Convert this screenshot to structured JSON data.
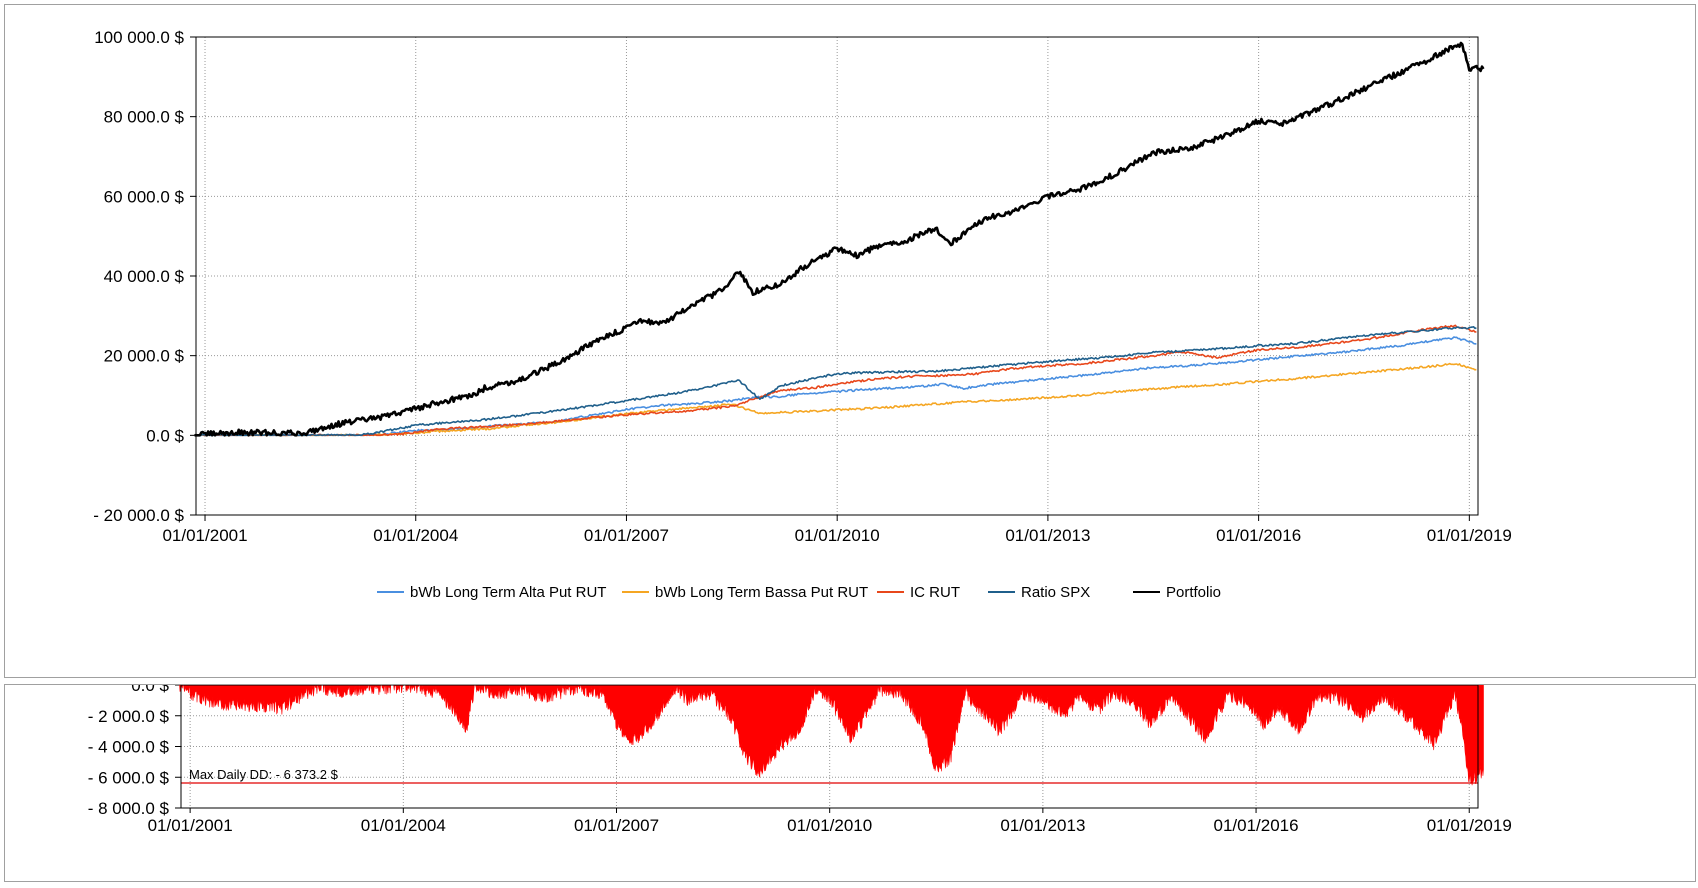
{
  "chart_data": [
    {
      "type": "line",
      "title": "",
      "xlabel": "",
      "ylabel": "",
      "xlim": [
        "2000-11-15",
        "2019-02-15"
      ],
      "ylim": [
        -20000,
        100000
      ],
      "grid": true,
      "legend_placement": "bottom",
      "x_tick_labels": [
        "01/01/2001",
        "01/01/2004",
        "01/01/2007",
        "01/01/2010",
        "01/01/2013",
        "01/01/2016",
        "01/01/2019"
      ],
      "x_tick_years": [
        2001,
        2004,
        2007,
        2010,
        2013,
        2016,
        2019
      ],
      "y_ticks": [
        -20000,
        0,
        20000,
        40000,
        60000,
        80000,
        100000
      ],
      "y_tick_labels": [
        "- 20 000.0 $",
        "0.0 $",
        "20 000.0 $",
        "40 000.0 $",
        "60 000.0 $",
        "80 000.0 $",
        "100 000.0 $"
      ],
      "series": [
        {
          "name": "bWb Long Term Alta Put RUT",
          "color": "#4a8fe0",
          "x": [
            2000.9,
            2003.3,
            2003.6,
            2004.0,
            2004.5,
            2005.0,
            2005.5,
            2006.0,
            2006.5,
            2007.0,
            2007.5,
            2008.0,
            2008.5,
            2008.8,
            2009.2,
            2009.6,
            2010.0,
            2010.5,
            2011.0,
            2011.5,
            2011.8,
            2012.2,
            2012.6,
            2013.0,
            2013.5,
            2014.0,
            2014.5,
            2015.0,
            2015.5,
            2016.0,
            2016.5,
            2017.0,
            2017.5,
            2018.0,
            2018.5,
            2018.8,
            2019.1
          ],
          "y": [
            0,
            0,
            400,
            1200,
            1500,
            2200,
            2800,
            3500,
            5000,
            6500,
            7500,
            8000,
            8700,
            9500,
            9800,
            10500,
            11000,
            11600,
            12000,
            12800,
            11800,
            12800,
            13500,
            14200,
            15000,
            16000,
            17000,
            17500,
            18200,
            19000,
            19800,
            20500,
            21500,
            22500,
            23800,
            24500,
            23000
          ]
        },
        {
          "name": "bWb Long Term Bassa Put RUT",
          "color": "#f5a623",
          "x": [
            2000.9,
            2003.3,
            2003.8,
            2004.3,
            2005.0,
            2005.5,
            2006.0,
            2006.5,
            2007.0,
            2007.5,
            2008.0,
            2008.5,
            2008.9,
            2009.2,
            2009.6,
            2010.0,
            2010.5,
            2011.0,
            2011.5,
            2011.9,
            2012.3,
            2013.0,
            2013.5,
            2014.0,
            2014.5,
            2015.0,
            2015.5,
            2016.0,
            2016.5,
            2017.0,
            2017.5,
            2018.0,
            2018.5,
            2018.8,
            2019.1
          ],
          "y": [
            0,
            0,
            300,
            1000,
            1600,
            2500,
            3300,
            4300,
            5400,
            6300,
            7000,
            7800,
            5500,
            5800,
            6000,
            6400,
            6800,
            7400,
            8000,
            8500,
            8800,
            9500,
            10100,
            11000,
            11600,
            12300,
            12800,
            13600,
            14200,
            15000,
            15800,
            16600,
            17400,
            18000,
            16500
          ]
        },
        {
          "name": "IC RUT",
          "color": "#e8471b",
          "x": [
            2000.9,
            2003.3,
            2003.8,
            2004.3,
            2005.0,
            2005.5,
            2006.0,
            2006.5,
            2007.0,
            2007.5,
            2008.0,
            2008.5,
            2008.8,
            2009.2,
            2009.7,
            2010.0,
            2010.5,
            2011.0,
            2011.5,
            2012.0,
            2012.5,
            2013.0,
            2013.5,
            2014.0,
            2014.5,
            2014.9,
            2015.4,
            2016.0,
            2016.5,
            2017.0,
            2017.5,
            2018.0,
            2018.5,
            2018.8,
            2019.1
          ],
          "y": [
            0,
            0,
            300,
            1500,
            2200,
            2800,
            3500,
            4400,
            5200,
            5700,
            6300,
            7300,
            9000,
            11300,
            12000,
            13000,
            14000,
            14800,
            15000,
            15500,
            16800,
            17500,
            18000,
            19000,
            20000,
            21000,
            19500,
            21500,
            22000,
            23000,
            24000,
            25500,
            27000,
            27500,
            26000
          ]
        },
        {
          "name": "Ratio SPX",
          "color": "#1f5f8b",
          "x": [
            2000.9,
            2003.2,
            2003.6,
            2004.0,
            2004.5,
            2005.0,
            2005.5,
            2006.0,
            2006.5,
            2007.0,
            2007.5,
            2008.0,
            2008.6,
            2008.9,
            2009.2,
            2009.6,
            2010.0,
            2010.5,
            2011.0,
            2011.5,
            2012.0,
            2012.5,
            2013.0,
            2013.5,
            2014.0,
            2014.5,
            2015.0,
            2015.5,
            2016.0,
            2016.5,
            2017.0,
            2017.5,
            2018.0,
            2018.5,
            2018.8,
            2019.1
          ],
          "y": [
            0,
            0,
            1200,
            2500,
            3300,
            4000,
            5000,
            6200,
            7400,
            8700,
            10000,
            11500,
            13800,
            9000,
            12500,
            14000,
            15500,
            15800,
            16000,
            16200,
            17000,
            17800,
            18500,
            19200,
            19800,
            20800,
            21300,
            21800,
            22500,
            23000,
            24000,
            25000,
            25800,
            26500,
            27000,
            27000
          ]
        },
        {
          "name": "Portfolio",
          "color": "#000000",
          "x": [
            2000.85,
            2001.2,
            2001.5,
            2002.0,
            2002.4,
            2002.7,
            2003.0,
            2003.5,
            2004.0,
            2004.5,
            2004.8,
            2005.0,
            2005.5,
            2006.0,
            2006.5,
            2007.0,
            2007.2,
            2007.5,
            2008.0,
            2008.4,
            2008.6,
            2008.8,
            2009.2,
            2009.5,
            2010.0,
            2010.3,
            2010.5,
            2011.0,
            2011.4,
            2011.6,
            2011.9,
            2012.2,
            2012.5,
            2013.0,
            2013.3,
            2013.5,
            2014.0,
            2014.5,
            2015.0,
            2015.5,
            2016.0,
            2016.3,
            2016.6,
            2017.0,
            2017.5,
            2018.0,
            2018.4,
            2018.7,
            2018.9,
            2019.0,
            2019.2
          ],
          "y": [
            0,
            500,
            700,
            600,
            500,
            2000,
            3200,
            4500,
            6800,
            9000,
            10000,
            12000,
            14000,
            18000,
            23000,
            27000,
            29000,
            28000,
            33000,
            37000,
            41000,
            36000,
            38000,
            42000,
            47000,
            45000,
            47000,
            49000,
            52000,
            48000,
            52000,
            55000,
            56000,
            60000,
            61000,
            62000,
            66000,
            71000,
            72000,
            75000,
            79000,
            78000,
            80000,
            83000,
            87000,
            91000,
            94000,
            97000,
            98000,
            92000,
            92000
          ]
        }
      ]
    },
    {
      "type": "area",
      "title": "",
      "xlabel": "",
      "ylabel": "",
      "xlim": [
        "2000-11-15",
        "2019-02-15"
      ],
      "ylim": [
        -8000,
        0
      ],
      "grid": true,
      "x_tick_labels": [
        "01/01/2001",
        "01/01/2004",
        "01/01/2007",
        "01/01/2010",
        "01/01/2013",
        "01/01/2016",
        "01/01/2019"
      ],
      "x_tick_years": [
        2001,
        2004,
        2007,
        2010,
        2013,
        2016,
        2019
      ],
      "y_ticks": [
        0,
        -2000,
        -4000,
        -6000,
        -8000
      ],
      "y_tick_labels": [
        "0.0 $",
        "- 2 000.0 $",
        "- 4 000.0 $",
        "- 6 000.0 $",
        "- 8 000.0 $"
      ],
      "series": [
        {
          "name": "",
          "color": "#ff0000",
          "x": [
            2000.85,
            2001.0,
            2001.3,
            2001.7,
            2002.0,
            2002.3,
            2002.6,
            2002.8,
            2003.2,
            2003.6,
            2004.0,
            2004.5,
            2004.9,
            2005.0,
            2005.3,
            2005.6,
            2006.0,
            2006.4,
            2006.8,
            2007.0,
            2007.2,
            2007.5,
            2007.8,
            2008.0,
            2008.3,
            2008.6,
            2008.8,
            2009.0,
            2009.3,
            2009.6,
            2009.8,
            2010.0,
            2010.3,
            2010.5,
            2010.7,
            2011.0,
            2011.3,
            2011.5,
            2011.7,
            2011.9,
            2012.1,
            2012.4,
            2012.7,
            2013.0,
            2013.3,
            2013.5,
            2013.8,
            2014.0,
            2014.3,
            2014.5,
            2014.8,
            2015.0,
            2015.3,
            2015.6,
            2015.9,
            2016.1,
            2016.3,
            2016.6,
            2016.9,
            2017.2,
            2017.5,
            2017.8,
            2018.0,
            2018.3,
            2018.5,
            2018.8,
            2018.9,
            2019.0,
            2019.2
          ],
          "y": [
            0,
            -500,
            -1200,
            -1400,
            -1300,
            -1500,
            -600,
            -200,
            -400,
            -300,
            -100,
            -500,
            -2800,
            -100,
            -600,
            -300,
            -800,
            -200,
            -500,
            -2500,
            -3800,
            -2500,
            -300,
            -900,
            -500,
            -2000,
            -4500,
            -5700,
            -4000,
            -2800,
            -200,
            -800,
            -3500,
            -2000,
            -300,
            -500,
            -2500,
            -5500,
            -4800,
            -500,
            -1500,
            -3000,
            -700,
            -900,
            -2000,
            -800,
            -1500,
            -500,
            -1200,
            -2500,
            -800,
            -1800,
            -3500,
            -600,
            -1200,
            -2600,
            -1500,
            -2800,
            -700,
            -900,
            -2000,
            -700,
            -1500,
            -2800,
            -3900,
            -600,
            -3000,
            -6373.2,
            -5500
          ]
        }
      ],
      "annotations": [
        {
          "text": "Max Daily DD:  - 6 373.2 $",
          "y": -6373.2,
          "color": "#e00000"
        }
      ]
    }
  ]
}
